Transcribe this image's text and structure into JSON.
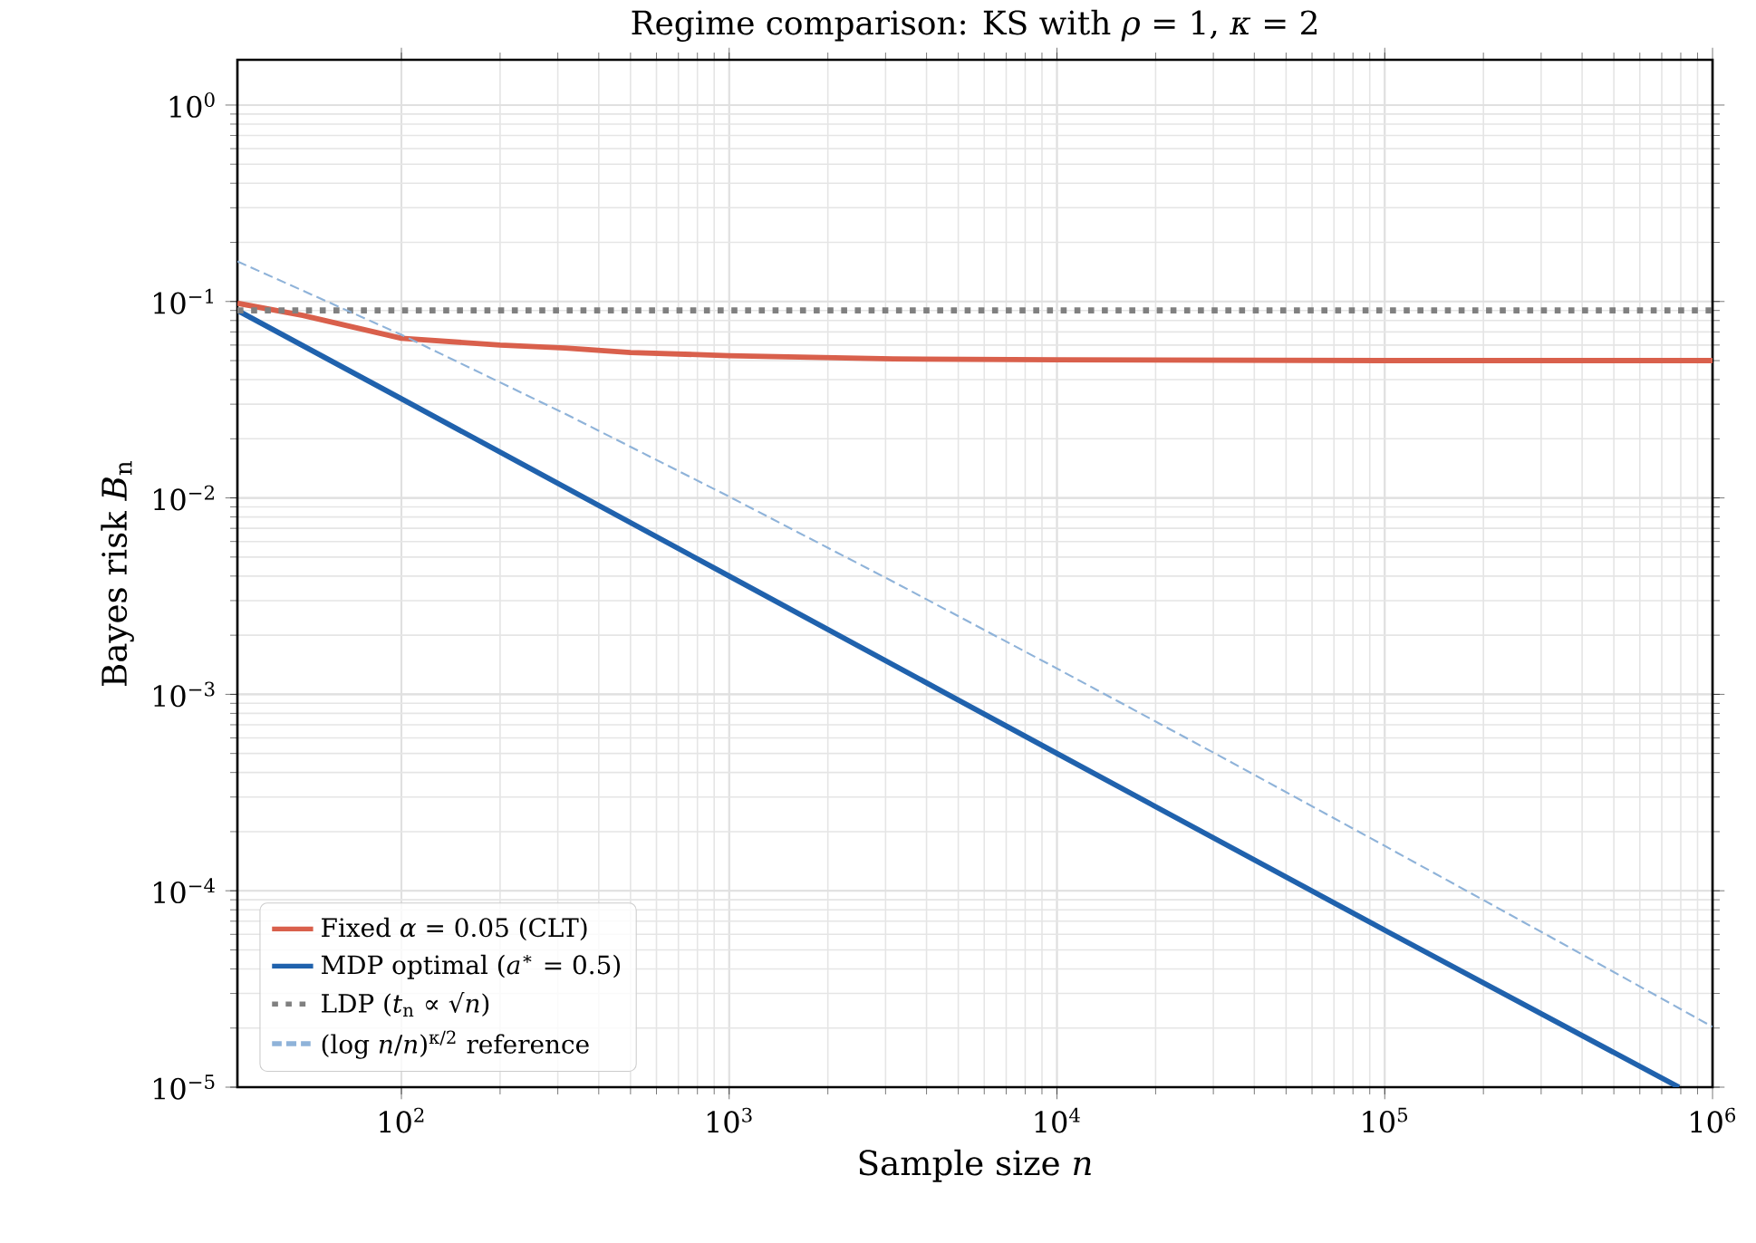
{
  "chart_data": {
    "type": "line",
    "title": "Regime comparison: KS with *ρ* = 1, *κ* = 2",
    "xlabel": "Sample size *n*",
    "ylabel": "Bayes risk *B*$_{n}$",
    "log": "xy",
    "grid": true,
    "legend": "bottom left",
    "marker": "none",
    "xlim": [
      31.6,
      1000000
    ],
    "ylim": [
      1e-05,
      1.7
    ],
    "xticks": [
      {
        "value": 100,
        "label": "10$^{2}$"
      },
      {
        "value": 1000,
        "label": "10$^{3}$"
      },
      {
        "value": 10000,
        "label": "10$^{4}$"
      },
      {
        "value": 100000,
        "label": "10$^{5}$"
      },
      {
        "value": 1000000,
        "label": "10$^{6}$"
      }
    ],
    "yticks": [
      {
        "value": 1e-05,
        "label": "10$^{−5}$"
      },
      {
        "value": 0.0001,
        "label": "10$^{−4}$"
      },
      {
        "value": 0.001,
        "label": "10$^{−3}$"
      },
      {
        "value": 0.01,
        "label": "10$^{−2}$"
      },
      {
        "value": 0.1,
        "label": "10$^{−1}$"
      },
      {
        "value": 1,
        "label": "10$^{0}$"
      }
    ],
    "series": [
      {
        "name": "Fixed *α* = 0.05 (CLT)",
        "color": "#d9604c",
        "line_style": "solid",
        "x": [
          31.6,
          50,
          100,
          200,
          316,
          500,
          1000,
          3162,
          10000,
          100000,
          1000000
        ],
        "values": [
          0.098,
          0.085,
          0.065,
          0.06,
          0.058,
          0.055,
          0.053,
          0.051,
          0.0505,
          0.05,
          0.05
        ]
      },
      {
        "name": "MDP optimal (*a*$^{∗}$ = 0.5)",
        "color": "#2062ad",
        "line_style": "solid",
        "x": [
          31.6,
          100,
          1000,
          10000,
          100000,
          790000
        ],
        "values": [
          0.09,
          0.032,
          0.004,
          0.0005,
          6.3e-05,
          1e-05
        ]
      },
      {
        "name": "LDP (*t*$_{n}$ ∝ √*n*)",
        "color": "#808080",
        "line_style": "dotted",
        "x": [
          31.6,
          1000000
        ],
        "values": [
          0.09,
          0.09
        ]
      },
      {
        "name": "(log *n*/*n*)$^{κ/2}$ reference",
        "color": "#8fb3d9",
        "line_style": "dashed",
        "x": [
          31.6,
          100,
          316,
          1000,
          3162,
          10000,
          31623,
          100000,
          316228,
          1000000
        ],
        "values": [
          0.16,
          0.0677,
          0.0268,
          0.01015,
          0.00375,
          0.001354,
          0.000482,
          0.0001692,
          5.89e-05,
          2.03e-05
        ]
      }
    ]
  }
}
